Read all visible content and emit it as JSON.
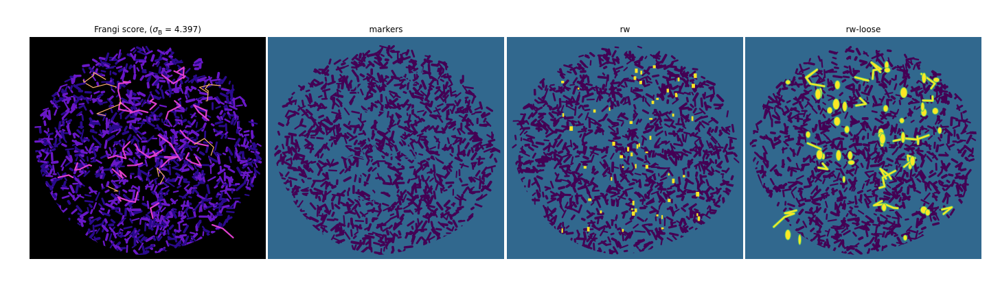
{
  "panels": [
    {
      "title_prefix": "Frangi score, (",
      "title_sigma": "σ",
      "title_sub": "B",
      "title_suffix": " = 4.397)"
    },
    {
      "title": "markers"
    },
    {
      "title": "rw"
    },
    {
      "title": "rw-loose"
    }
  ],
  "colors": {
    "frangi_background": "#000000",
    "frangi_low": "#2a0a8c",
    "frangi_mid": "#6a18c8",
    "frangi_high": "#e040d0",
    "frangi_peak": "#ffb070",
    "label_background": "#31688e",
    "label_dark": "#440154",
    "label_highlight": "#fde725",
    "label_edge": "#5ec962"
  }
}
